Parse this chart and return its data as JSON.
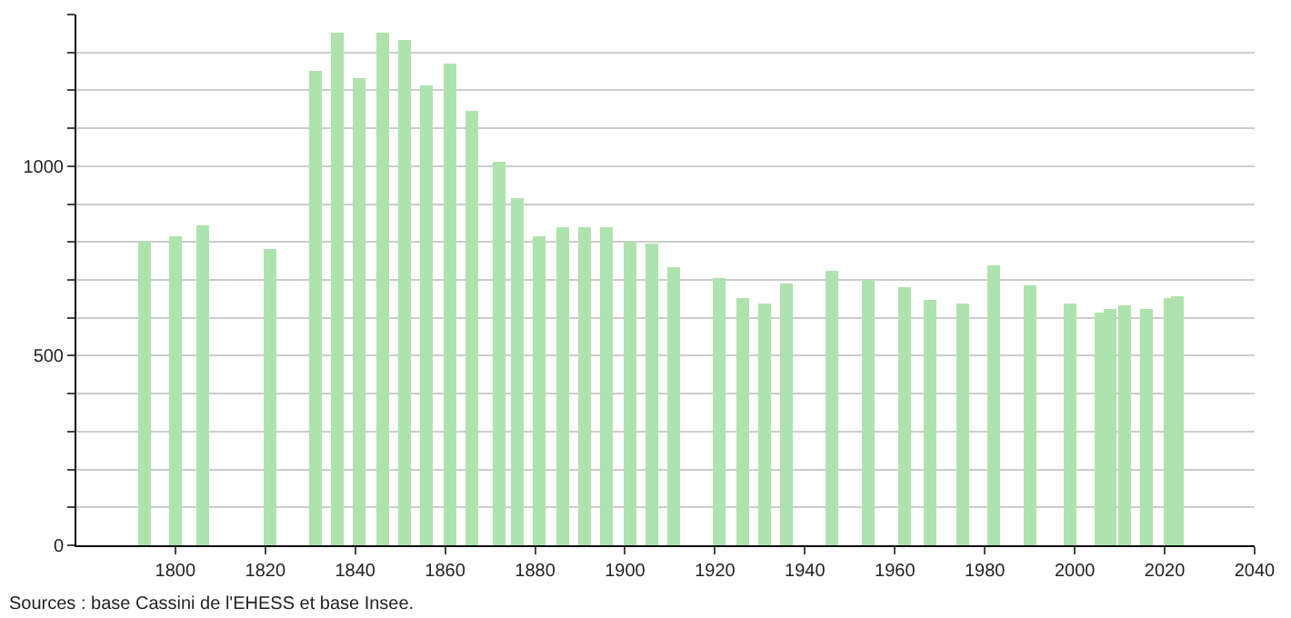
{
  "chart_data": {
    "type": "bar",
    "color": "#aee3ae",
    "x": [
      1793,
      1800,
      1806,
      1821,
      1831,
      1836,
      1841,
      1846,
      1851,
      1856,
      1861,
      1866,
      1872,
      1876,
      1881,
      1886,
      1891,
      1896,
      1901,
      1906,
      1911,
      1921,
      1926,
      1931,
      1936,
      1946,
      1954,
      1962,
      1968,
      1975,
      1982,
      1990,
      1999,
      2006,
      2008,
      2011,
      2016,
      2021,
      2023
    ],
    "values": [
      800,
      815,
      845,
      780,
      1250,
      1350,
      1230,
      1350,
      1335,
      1215,
      1270,
      1145,
      1010,
      915,
      815,
      840,
      840,
      840,
      800,
      795,
      735,
      705,
      650,
      640,
      690,
      725,
      700,
      680,
      645,
      640,
      740,
      685,
      640,
      615,
      625,
      635,
      625,
      650,
      655
    ],
    "xlim": [
      1778,
      2040
    ],
    "xticks": [
      1800,
      1820,
      1840,
      1860,
      1880,
      1900,
      1920,
      1940,
      1960,
      1980,
      2000,
      2020,
      2040
    ],
    "ylim": [
      0,
      1400
    ],
    "yticks": [
      0,
      {
        "value": 100,
        "label": null
      },
      {
        "value": 200,
        "label": null
      },
      {
        "value": 300,
        "label": null
      },
      {
        "value": 400,
        "label": null
      },
      500,
      {
        "value": 600,
        "label": null
      },
      {
        "value": 700,
        "label": null
      },
      {
        "value": 800,
        "label": null
      },
      {
        "value": 900,
        "label": null
      },
      1000,
      {
        "value": 1100,
        "label": null
      },
      {
        "value": 1200,
        "label": null
      },
      {
        "value": 1300,
        "label": null
      },
      {
        "value": 1400,
        "label": null
      }
    ],
    "grid": "y",
    "annotations": [
      "Sources : base Cassini de l'EHESS et base Insee."
    ]
  }
}
